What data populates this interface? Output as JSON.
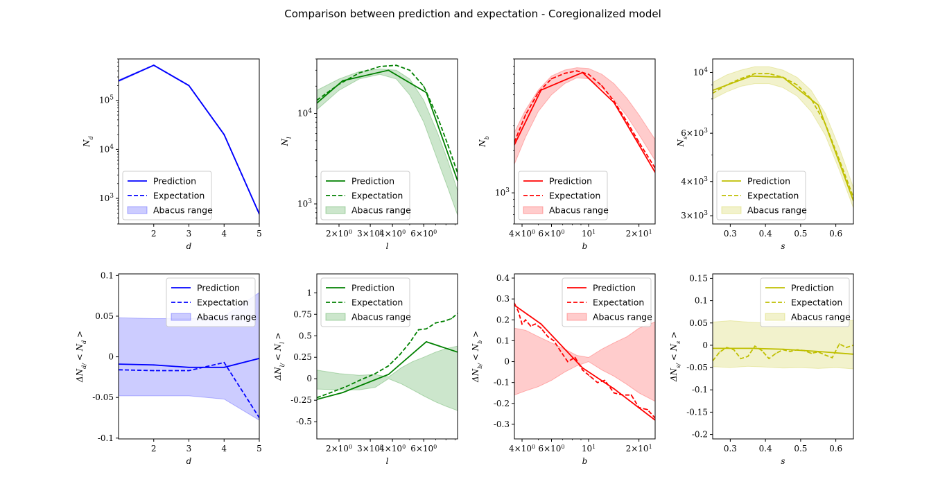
{
  "figure": {
    "title": "Comparison between prediction and expectation - Coregionalized model",
    "legend_labels": [
      "Prediction",
      "Expectation",
      "Abacus range"
    ]
  },
  "chart_data": [
    {
      "type": "line",
      "id": "top-d",
      "title": "",
      "xlabel": "d",
      "ylabel": "N_d",
      "yscale": "log",
      "xlim": [
        1,
        5
      ],
      "ylim": [
        300,
        700000
      ],
      "color": "#0000ff",
      "legend": "lower-left",
      "xticks": [
        2,
        3,
        4,
        5
      ],
      "yticks": [
        {
          "v": 1000,
          "label": "10^3"
        },
        {
          "v": 10000,
          "label": "10^4"
        },
        {
          "v": 100000,
          "label": "10^5"
        }
      ],
      "x": [
        1,
        2,
        3,
        4,
        5
      ],
      "series": [
        {
          "name": "Prediction",
          "values": [
            250000,
            520000,
            200000,
            20000,
            480
          ]
        },
        {
          "name": "Expectation",
          "values": [
            250000,
            520000,
            200000,
            20000,
            480
          ]
        }
      ],
      "band": {
        "name": "Abacus range",
        "lower": [
          240000,
          510000,
          195000,
          19500,
          460
        ],
        "upper": [
          260000,
          530000,
          205000,
          20500,
          500
        ]
      }
    },
    {
      "type": "line",
      "id": "top-l",
      "title": "",
      "xlabel": "l",
      "ylabel": "N_l",
      "xscale": "log",
      "yscale": "log",
      "xlim": [
        1.5,
        9.3
      ],
      "ylim": [
        600,
        40000
      ],
      "color": "#008000",
      "legend": "lower-left",
      "xticks": [
        {
          "v": 2,
          "label": "2×10^0"
        },
        {
          "v": 3,
          "label": "3×10^0"
        },
        {
          "v": 4,
          "label": "4×10^0"
        },
        {
          "v": 6,
          "label": "6×10^0"
        }
      ],
      "yticks": [
        {
          "v": 1000,
          "label": "10^3"
        },
        {
          "v": 10000,
          "label": "10^4"
        }
      ],
      "x": [
        1.5,
        2.1,
        3.8,
        6.2,
        9.3
      ],
      "series": [
        {
          "name": "Prediction",
          "values": [
            13000,
            23000,
            30000,
            17000,
            1800
          ]
        },
        {
          "name": "Expectation",
          "x": [
            1.5,
            2.0,
            2.6,
            3.4,
            4.2,
            5.0,
            6.0,
            7.2,
            8.2,
            9.3
          ],
          "values": [
            14000,
            21000,
            28000,
            33000,
            34000,
            30000,
            20000,
            9000,
            4500,
            2200
          ]
        }
      ],
      "band": {
        "name": "Abacus range",
        "x": [
          1.5,
          2.0,
          2.6,
          3.4,
          4.2,
          5.0,
          6.0,
          7.2,
          8.2,
          9.3
        ],
        "lower": [
          11000,
          18000,
          24000,
          27000,
          24000,
          16000,
          8000,
          3000,
          1500,
          750
        ],
        "upper": [
          18000,
          24000,
          29000,
          31000,
          30000,
          24000,
          14000,
          6000,
          3000,
          1400
        ]
      }
    },
    {
      "type": "line",
      "id": "top-b",
      "title": "",
      "xlabel": "b",
      "ylabel": "N_b",
      "xscale": "log",
      "yscale": "log",
      "xlim": [
        3.6,
        25
      ],
      "ylim": [
        600,
        9000
      ],
      "color": "#ff0000",
      "legend": "lower-left",
      "xticks": [
        {
          "v": 4,
          "label": "4×10^0"
        },
        {
          "v": 6,
          "label": "6×10^0"
        },
        {
          "v": 10,
          "label": "10^1"
        },
        {
          "v": 20,
          "label": "2×10^1"
        }
      ],
      "yticks": [
        {
          "v": 1000,
          "label": "10^3"
        }
      ],
      "x": [
        3.6,
        5.2,
        9.2,
        14.2,
        25
      ],
      "series": [
        {
          "name": "Prediction",
          "values": [
            2200,
            5400,
            7200,
            4400,
            1400
          ]
        },
        {
          "name": "Expectation",
          "x": [
            3.6,
            4.2,
            5.0,
            6.0,
            7.2,
            8.5,
            10,
            12,
            14.2,
            17,
            20,
            25
          ],
          "values": [
            2300,
            3600,
            5200,
            6500,
            7100,
            7400,
            7000,
            5800,
            4500,
            3200,
            2300,
            1500
          ]
        }
      ],
      "band": {
        "name": "Abacus range",
        "x": [
          3.6,
          4.2,
          5.0,
          6.0,
          7.2,
          8.5,
          10,
          12,
          14.2,
          17,
          20,
          25
        ],
        "lower": [
          1600,
          2500,
          3800,
          5000,
          6000,
          6600,
          6500,
          5600,
          4600,
          3500,
          2600,
          1700
        ],
        "upper": [
          2700,
          3900,
          5400,
          6800,
          7500,
          7800,
          7700,
          7000,
          6000,
          4700,
          3600,
          2400
        ]
      }
    },
    {
      "type": "line",
      "id": "top-s",
      "title": "",
      "xlabel": "s",
      "ylabel": "N_s",
      "yscale": "log",
      "xlim": [
        0.25,
        0.65
      ],
      "ylim": [
        2800,
        11200
      ],
      "color": "#bfbf00",
      "legend": "lower-left",
      "xticks": [
        0.3,
        0.4,
        0.5,
        0.6
      ],
      "yticks": [
        {
          "v": 3000,
          "label": "3×10^3"
        },
        {
          "v": 4000,
          "label": "4×10^3"
        },
        {
          "v": 6000,
          "label": "6×10^3"
        },
        {
          "v": 10000,
          "label": "10^4"
        }
      ],
      "x": [
        0.25,
        0.36,
        0.45,
        0.55,
        0.65
      ],
      "series": [
        {
          "name": "Prediction",
          "values": [
            8600,
            9700,
            9600,
            7600,
            3400
          ]
        },
        {
          "name": "Expectation",
          "x": [
            0.25,
            0.29,
            0.33,
            0.37,
            0.41,
            0.45,
            0.49,
            0.53,
            0.57,
            0.61,
            0.65
          ],
          "values": [
            8400,
            9000,
            9500,
            9900,
            9900,
            9600,
            9000,
            8000,
            6500,
            4800,
            3500
          ]
        }
      ],
      "band": {
        "name": "Abacus range",
        "x": [
          0.25,
          0.29,
          0.33,
          0.37,
          0.41,
          0.45,
          0.49,
          0.53,
          0.57,
          0.61,
          0.65
        ],
        "lower": [
          8000,
          8500,
          8900,
          9100,
          9100,
          8800,
          8200,
          7200,
          5900,
          4400,
          3200
        ],
        "upper": [
          9200,
          9800,
          10200,
          10500,
          10500,
          10200,
          9600,
          8600,
          7100,
          5300,
          3800
        ]
      }
    },
    {
      "type": "line",
      "id": "bot-d",
      "title": "",
      "xlabel": "d",
      "ylabel": "ΔN_d/ < N_d >",
      "xlim": [
        1,
        5
      ],
      "ylim": [
        -0.101,
        0.102
      ],
      "color": "#0000ff",
      "legend": "upper-right",
      "xticks": [
        2,
        3,
        4,
        5
      ],
      "yticks": [
        -0.1,
        -0.05,
        0.0,
        0.05,
        0.1
      ],
      "x": [
        1,
        2,
        3,
        4,
        5
      ],
      "series": [
        {
          "name": "Prediction",
          "values": [
            -0.009,
            -0.01,
            -0.013,
            -0.013,
            -0.002
          ]
        },
        {
          "name": "Expectation",
          "values": [
            -0.016,
            -0.017,
            -0.017,
            -0.007,
            -0.075
          ]
        }
      ],
      "band": {
        "name": "Abacus range",
        "lower": [
          -0.048,
          -0.048,
          -0.048,
          -0.052,
          -0.078
        ],
        "upper": [
          0.048,
          0.047,
          0.047,
          0.05,
          0.079
        ]
      }
    },
    {
      "type": "line",
      "id": "bot-l",
      "title": "",
      "xlabel": "l",
      "ylabel": "ΔN_l/ < N_l >",
      "xscale": "log",
      "xlim": [
        1.5,
        9.3
      ],
      "ylim": [
        -0.7,
        1.22
      ],
      "color": "#008000",
      "legend": "upper-left",
      "xticks": [
        {
          "v": 2,
          "label": "2×10^0"
        },
        {
          "v": 3,
          "label": "3×10^0"
        },
        {
          "v": 4,
          "label": "4×10^0"
        },
        {
          "v": 6,
          "label": "6×10^0"
        }
      ],
      "yticks": [
        -0.5,
        -0.25,
        0.0,
        0.25,
        0.5,
        0.75,
        1.0
      ],
      "x": [
        1.5,
        2.1,
        3.8,
        6.2,
        9.3
      ],
      "series": [
        {
          "name": "Prediction",
          "values": [
            -0.24,
            -0.16,
            0.05,
            0.43,
            0.31
          ]
        },
        {
          "name": "Expectation",
          "x": [
            1.5,
            1.8,
            2.2,
            2.6,
            3.2,
            3.8,
            4.4,
            5.0,
            5.6,
            6.2,
            7.0,
            7.8,
            8.6,
            9.3
          ],
          "values": [
            -0.22,
            -0.16,
            -0.09,
            -0.02,
            0.06,
            0.15,
            0.28,
            0.42,
            0.57,
            0.58,
            0.65,
            0.67,
            0.7,
            0.76
          ]
        }
      ],
      "band": {
        "name": "Abacus range",
        "x": [
          1.5,
          2.0,
          2.6,
          3.2,
          3.8,
          4.5,
          5.2,
          6.0,
          7.0,
          8.0,
          9.3
        ],
        "lower": [
          -0.12,
          -0.13,
          -0.13,
          -0.1,
          0.0,
          -0.06,
          -0.13,
          -0.2,
          -0.27,
          -0.32,
          -0.37
        ],
        "upper": [
          0.1,
          0.06,
          0.04,
          0.05,
          0.02,
          0.13,
          0.2,
          0.25,
          0.31,
          0.35,
          0.38
        ]
      }
    },
    {
      "type": "line",
      "id": "bot-b",
      "title": "",
      "xlabel": "b",
      "ylabel": "ΔN_b/ < N_b >",
      "xscale": "log",
      "xlim": [
        3.6,
        25
      ],
      "ylim": [
        -0.37,
        0.42
      ],
      "color": "#ff0000",
      "legend": "upper-right",
      "xticks": [
        {
          "v": 4,
          "label": "4×10^0"
        },
        {
          "v": 6,
          "label": "6×10^0"
        },
        {
          "v": 10,
          "label": "10^1"
        },
        {
          "v": 20,
          "label": "2×10^1"
        }
      ],
      "yticks": [
        -0.3,
        -0.2,
        -0.1,
        0.0,
        0.1,
        0.2,
        0.3,
        0.4
      ],
      "x": [
        3.6,
        5.2,
        9.2,
        14.2,
        25
      ],
      "series": [
        {
          "name": "Prediction",
          "values": [
            0.27,
            0.18,
            -0.03,
            -0.13,
            -0.28
          ]
        },
        {
          "name": "Expectation",
          "x": [
            3.6,
            3.8,
            4.0,
            4.2,
            4.5,
            4.8,
            5.2,
            5.7,
            6.2,
            6.8,
            7.5,
            8.3,
            9.2,
            10.2,
            11.3,
            12.5,
            14.2,
            16,
            18,
            20,
            22.5,
            25
          ],
          "values": [
            0.28,
            0.24,
            0.18,
            0.2,
            0.17,
            0.18,
            0.16,
            0.12,
            0.1,
            0.05,
            0.0,
            0.02,
            -0.04,
            -0.07,
            -0.1,
            -0.09,
            -0.15,
            -0.16,
            -0.16,
            -0.22,
            -0.23,
            -0.27
          ]
        }
      ],
      "band": {
        "name": "Abacus range",
        "x": [
          3.6,
          4.2,
          5.0,
          6.0,
          7.2,
          8.5,
          10,
          12,
          14.2,
          17,
          20,
          25
        ],
        "lower": [
          -0.16,
          -0.14,
          -0.12,
          -0.09,
          -0.05,
          -0.02,
          0.0,
          -0.04,
          -0.07,
          -0.11,
          -0.15,
          -0.19
        ],
        "upper": [
          0.16,
          0.15,
          0.12,
          0.09,
          0.06,
          0.03,
          0.02,
          0.06,
          0.09,
          0.12,
          0.16,
          0.19
        ]
      }
    },
    {
      "type": "line",
      "id": "bot-s",
      "title": "",
      "xlabel": "s",
      "ylabel": "ΔN_s/ < N_s >",
      "xlim": [
        0.25,
        0.65
      ],
      "ylim": [
        -0.21,
        0.16
      ],
      "color": "#bfbf00",
      "legend": "upper-right",
      "xticks": [
        0.3,
        0.4,
        0.5,
        0.6
      ],
      "yticks": [
        -0.2,
        -0.15,
        -0.1,
        -0.05,
        0.0,
        0.05,
        0.1,
        0.15
      ],
      "x": [
        0.25,
        0.36,
        0.45,
        0.55,
        0.65
      ],
      "series": [
        {
          "name": "Prediction",
          "values": [
            -0.007,
            -0.007,
            -0.009,
            -0.014,
            -0.02
          ]
        },
        {
          "name": "Expectation",
          "x": [
            0.25,
            0.27,
            0.29,
            0.31,
            0.33,
            0.35,
            0.37,
            0.39,
            0.41,
            0.43,
            0.45,
            0.47,
            0.49,
            0.51,
            0.53,
            0.55,
            0.57,
            0.59,
            0.61,
            0.63,
            0.65
          ],
          "values": [
            -0.035,
            -0.015,
            -0.005,
            -0.01,
            -0.03,
            -0.025,
            -0.002,
            -0.012,
            -0.03,
            -0.018,
            -0.01,
            -0.014,
            -0.01,
            -0.012,
            -0.018,
            -0.015,
            -0.022,
            -0.028,
            0.003,
            -0.005,
            0.0
          ]
        }
      ],
      "band": {
        "name": "Abacus range",
        "x": [
          0.25,
          0.3,
          0.35,
          0.4,
          0.45,
          0.5,
          0.55,
          0.6,
          0.65
        ],
        "lower": [
          -0.048,
          -0.05,
          -0.047,
          -0.049,
          -0.051,
          -0.05,
          -0.052,
          -0.05,
          -0.053
        ],
        "upper": [
          0.052,
          0.055,
          0.052,
          0.05,
          0.053,
          0.051,
          0.054,
          0.053,
          0.056
        ]
      }
    }
  ]
}
